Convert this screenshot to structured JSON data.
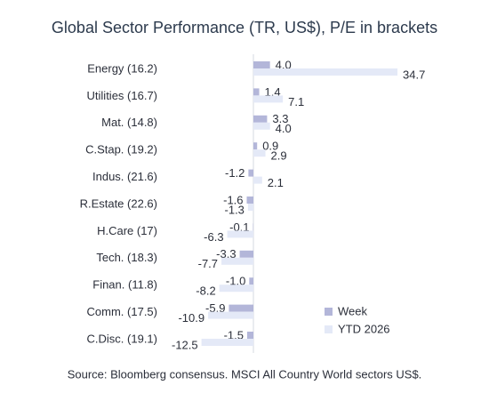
{
  "chart_data": {
    "type": "hbar",
    "title": "Global Sector Performance (TR, US$), P/E in brackets",
    "categories": [
      "Energy (16.2)",
      "Utilities (16.7)",
      "Mat. (14.8)",
      "C.Stap. (19.2)",
      "Indus. (21.6)",
      "R.Estate (22.6)",
      "H.Care (17)",
      "Tech. (18.3)",
      "Finan. (11.8)",
      "Comm. (17.5)",
      "C.Disc. (19.1)"
    ],
    "series": [
      {
        "name": "Week",
        "color": "#b3b6d9",
        "values": [
          4.0,
          1.4,
          3.3,
          0.9,
          -1.2,
          -1.6,
          -0.1,
          -3.3,
          -1.0,
          -5.9,
          -1.5
        ],
        "value_labels": [
          "4.0",
          "1.4",
          "3.3",
          "0.9",
          "-1.2",
          "-1.6",
          "-0.1",
          "-3.3",
          "-1.0",
          "-5.9",
          "-1.5"
        ]
      },
      {
        "name": "YTD 2026",
        "color": "#e4e9f7",
        "values": [
          34.7,
          7.1,
          4.0,
          2.9,
          2.1,
          -1.3,
          -6.3,
          -7.7,
          -8.2,
          -10.9,
          -12.5
        ],
        "value_labels": [
          "34.7",
          "7.1",
          "4.0",
          "2.9",
          "2.1",
          "-1.3",
          "-6.3",
          "-7.7",
          "-8.2",
          "-10.9",
          "-12.5"
        ]
      }
    ],
    "legend": "lower right",
    "source": "Source: Bloomberg consensus. MSCI All Country World sectors US$."
  }
}
